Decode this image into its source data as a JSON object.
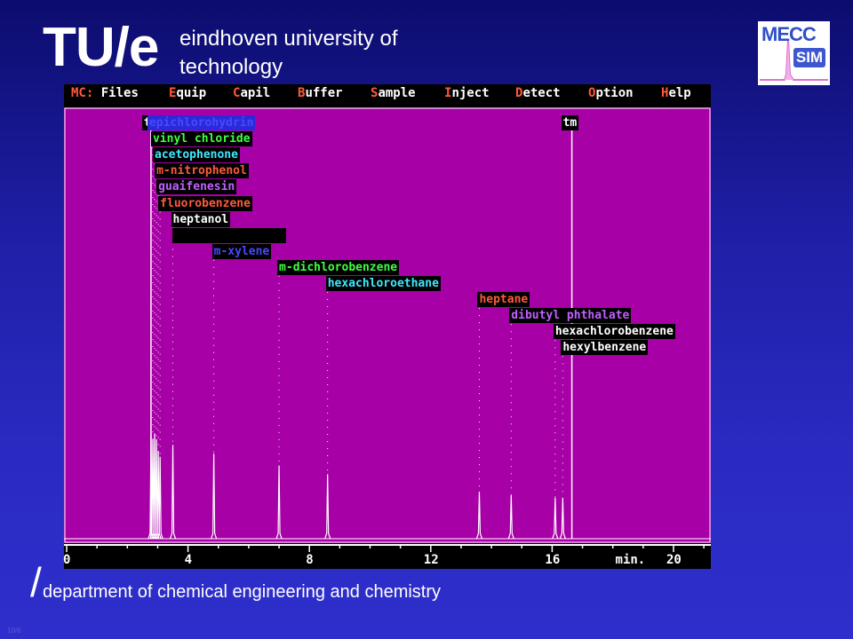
{
  "header": {
    "logo_text": "TU/e",
    "university_line1": "eindhoven university of",
    "university_line2": "technology"
  },
  "mecc_logo": {
    "text_top": "MECC",
    "text_bottom": "SIM"
  },
  "app": {
    "menu": [
      {
        "hot": "MC:",
        "rest": " Files"
      },
      {
        "hot": "E",
        "rest": "quip"
      },
      {
        "hot": "C",
        "rest": "apil"
      },
      {
        "hot": "B",
        "rest": "uffer"
      },
      {
        "hot": "S",
        "rest": "ample"
      },
      {
        "hot": "I",
        "rest": "nject"
      },
      {
        "hot": "D",
        "rest": "etect"
      },
      {
        "hot": "O",
        "rest": "ption"
      },
      {
        "hot": "H",
        "rest": "elp"
      }
    ]
  },
  "chart_data": {
    "type": "line",
    "xlabel": "min.",
    "x_ticks": [
      "0",
      "4",
      "8",
      "12",
      "16",
      "20"
    ],
    "xlim": [
      0,
      21.2
    ],
    "peaks": [
      {
        "name": "epichlorohydrin",
        "time": 2.78,
        "height": 0.36,
        "color": "#2a2ad8",
        "text": "#4848ff"
      },
      {
        "name": "vinyl chloride",
        "time": 2.84,
        "height": 0.34,
        "color": "#000000",
        "text": "#40ff40"
      },
      {
        "name": "acetophenone",
        "time": 2.9,
        "height": 0.36,
        "color": "#000000",
        "text": "#40e8ff"
      },
      {
        "name": "m-nitrophenol",
        "time": 2.96,
        "height": 0.34,
        "color": "#000000",
        "text": "#ff5a3c"
      },
      {
        "name": "guaifenesin",
        "time": 3.02,
        "height": 0.3,
        "color": "#000000",
        "text": "#c060ff"
      },
      {
        "name": "fluorobenzene",
        "time": 3.08,
        "height": 0.28,
        "color": "#000000",
        "text": "#ff5a3c"
      },
      {
        "name": "heptanol",
        "time": 3.5,
        "height": 0.32,
        "color": "#000000",
        "text": "#ffffff"
      },
      {
        "name": "",
        "time": 3.55,
        "height": 0.0,
        "color": "#000000",
        "text": "#ffffff"
      },
      {
        "name": "m-xylene",
        "time": 4.85,
        "height": 0.29,
        "color": "#000000",
        "text": "#4848ff"
      },
      {
        "name": "m-dichlorobenzene",
        "time": 7.0,
        "height": 0.25,
        "color": "#000000",
        "text": "#40ff40"
      },
      {
        "name": "hexachloroethane",
        "time": 8.6,
        "height": 0.22,
        "color": "#000000",
        "text": "#40e8ff"
      },
      {
        "name": "heptane",
        "time": 13.6,
        "height": 0.16,
        "color": "#000000",
        "text": "#ff5a3c"
      },
      {
        "name": "dibutyl phthalate",
        "time": 14.65,
        "height": 0.15,
        "color": "#000000",
        "text": "#c060ff"
      },
      {
        "name": "hexachlorobenzene",
        "time": 16.1,
        "height": 0.14,
        "color": "#000000",
        "text": "#ffffff"
      },
      {
        "name": "hexylbenzene",
        "time": 16.35,
        "height": 0.14,
        "color": "#000000",
        "text": "#ffffff"
      }
    ],
    "markers": [
      {
        "name": "t",
        "time": 2.78
      },
      {
        "name": "tm",
        "time": 16.65
      }
    ]
  },
  "footer": {
    "slash": "/",
    "department": "department of chemical engineering and chemistry",
    "page_number": "10/6"
  }
}
